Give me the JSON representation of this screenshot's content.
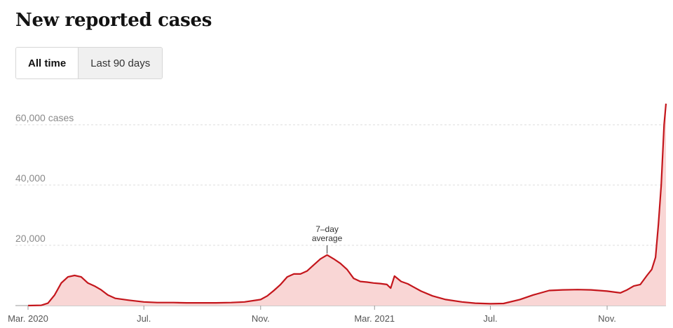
{
  "title": "New reported cases",
  "toggle": {
    "options": [
      "All time",
      "Last 90 days"
    ],
    "selected": "All time"
  },
  "colors": {
    "line": "#c4161c",
    "area": "#f9d6d5",
    "grid": "#dddddd"
  },
  "chart_data": {
    "type": "area",
    "title": "New reported cases",
    "xlabel": "",
    "ylabel": "",
    "ylim": [
      0,
      67000
    ],
    "y_ticks": [
      20000,
      40000,
      60000
    ],
    "y_tick_labels": [
      "20,000",
      "40,000",
      "60,000 cases"
    ],
    "x_ticks": [
      "2020-03-01",
      "2020-07-01",
      "2020-11-01",
      "2021-03-01",
      "2021-07-01",
      "2021-11-01"
    ],
    "x_tick_labels": [
      "Mar. 2020",
      "Jul.",
      "Nov.",
      "Mar. 2021",
      "Jul.",
      "Nov."
    ],
    "grid": true,
    "annotation": {
      "date": "2021-01-10",
      "value": 16800,
      "lines": [
        "7–day",
        "average"
      ]
    },
    "series": [
      {
        "x": [
          "2020-03-01",
          "2020-03-15",
          "2020-03-22",
          "2020-03-29",
          "2020-04-05",
          "2020-04-12",
          "2020-04-19",
          "2020-04-26",
          "2020-05-03",
          "2020-05-10",
          "2020-05-17",
          "2020-05-24",
          "2020-06-01",
          "2020-06-15",
          "2020-07-01",
          "2020-07-15",
          "2020-08-01",
          "2020-08-15",
          "2020-09-01",
          "2020-09-15",
          "2020-10-01",
          "2020-10-15",
          "2020-11-01",
          "2020-11-08",
          "2020-11-15",
          "2020-11-22",
          "2020-11-29",
          "2020-12-06",
          "2020-12-13",
          "2020-12-20",
          "2020-12-27",
          "2021-01-03",
          "2021-01-10",
          "2021-01-17",
          "2021-01-24",
          "2021-01-31",
          "2021-02-07",
          "2021-02-14",
          "2021-02-21",
          "2021-02-28",
          "2021-03-07",
          "2021-03-14",
          "2021-03-18",
          "2021-03-22",
          "2021-03-29",
          "2021-04-05",
          "2021-04-12",
          "2021-04-19",
          "2021-05-01",
          "2021-05-15",
          "2021-06-01",
          "2021-06-15",
          "2021-07-01",
          "2021-07-15",
          "2021-08-01",
          "2021-08-15",
          "2021-09-01",
          "2021-09-15",
          "2021-10-01",
          "2021-10-15",
          "2021-11-01",
          "2021-11-15",
          "2021-11-22",
          "2021-11-29",
          "2021-12-06",
          "2021-12-13",
          "2021-12-18",
          "2021-12-22",
          "2021-12-25",
          "2021-12-28",
          "2021-12-31",
          "2022-01-02"
        ],
        "values": [
          0,
          100,
          800,
          3500,
          7500,
          9500,
          10000,
          9500,
          7500,
          6500,
          5200,
          3500,
          2400,
          1800,
          1200,
          1000,
          1000,
          900,
          900,
          900,
          1000,
          1200,
          2000,
          3200,
          5000,
          7000,
          9500,
          10500,
          10500,
          11500,
          13500,
          15500,
          16800,
          15500,
          14000,
          12000,
          9000,
          8000,
          7800,
          7500,
          7300,
          7000,
          5800,
          9800,
          8000,
          7200,
          6000,
          4800,
          3200,
          2000,
          1200,
          800,
          600,
          700,
          2000,
          3500,
          5000,
          5200,
          5300,
          5200,
          4800,
          4200,
          5200,
          6500,
          7000,
          10000,
          12000,
          16000,
          27000,
          40000,
          60000,
          67000
        ]
      }
    ]
  }
}
